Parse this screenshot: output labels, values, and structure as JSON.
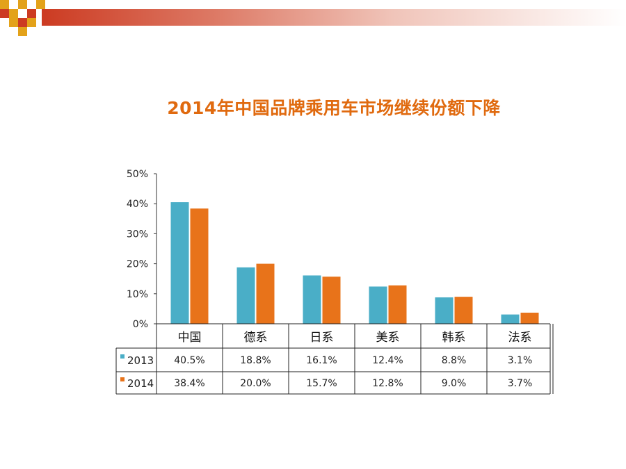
{
  "slide": {
    "title": "2014年中国品牌乘用车市场继续份额下降"
  },
  "colors": {
    "series_2013": "#4aaec7",
    "series_2014": "#e8731a",
    "title": "#e06a0f",
    "decor_red": "#cc3b22",
    "decor_gold": "#e3a21a"
  },
  "chart_data": {
    "type": "bar",
    "categories": [
      "中国",
      "德系",
      "日系",
      "美系",
      "韩系",
      "法系"
    ],
    "series": [
      {
        "name": "2013",
        "values": [
          40.5,
          18.8,
          16.1,
          12.4,
          8.8,
          3.1
        ],
        "labels": [
          "40.5%",
          "18.8%",
          "16.1%",
          "12.4%",
          "8.8%",
          "3.1%"
        ]
      },
      {
        "name": "2014",
        "values": [
          38.4,
          20.0,
          15.7,
          12.8,
          9.0,
          3.7
        ],
        "labels": [
          "38.4%",
          "20.0%",
          "15.7%",
          "12.8%",
          "9.0%",
          "3.7%"
        ]
      }
    ],
    "yticks": [
      "0%",
      "10%",
      "20%",
      "30%",
      "40%",
      "50%"
    ],
    "ylim": [
      0,
      50
    ],
    "title": "",
    "xlabel": "",
    "ylabel": "",
    "grid": false,
    "legend": "data-table"
  }
}
